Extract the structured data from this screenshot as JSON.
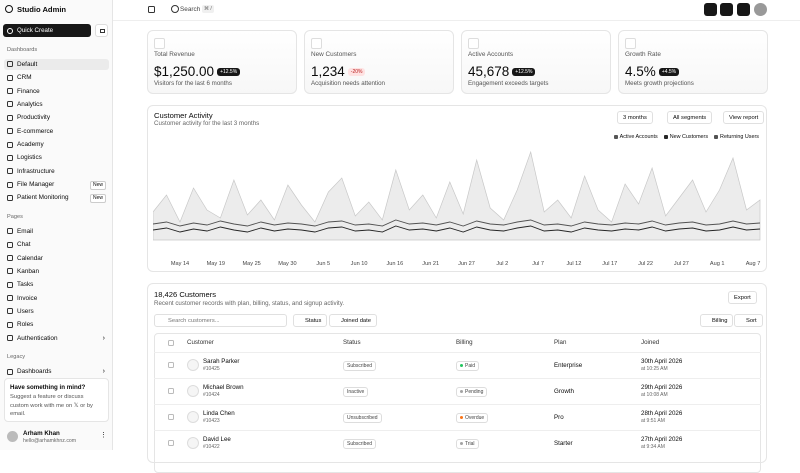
{
  "sidebar": {
    "brand": "Studio Admin",
    "quick_create": "Quick Create",
    "sections": [
      {
        "title": "Dashboards",
        "items": [
          {
            "label": "Default"
          },
          {
            "label": "CRM"
          },
          {
            "label": "Finance"
          },
          {
            "label": "Analytics"
          },
          {
            "label": "Productivity"
          },
          {
            "label": "E-commerce"
          },
          {
            "label": "Academy"
          },
          {
            "label": "Logistics"
          },
          {
            "label": "Infrastructure"
          },
          {
            "label": "File Manager",
            "badge": "New"
          },
          {
            "label": "Patient Monitoring",
            "badge": "New"
          }
        ]
      },
      {
        "title": "Pages",
        "items": [
          {
            "label": "Email"
          },
          {
            "label": "Chat"
          },
          {
            "label": "Calendar"
          },
          {
            "label": "Kanban"
          },
          {
            "label": "Tasks"
          },
          {
            "label": "Invoice"
          },
          {
            "label": "Users"
          },
          {
            "label": "Roles"
          },
          {
            "label": "Authentication"
          }
        ]
      },
      {
        "title": "Legacy",
        "items": [
          {
            "label": "Dashboards"
          }
        ]
      }
    ],
    "promo": {
      "title": "Have something in mind?",
      "text": "Suggest a feature or discuss custom work with me on 𝕏 or by email."
    },
    "user": {
      "name": "Arham Khan",
      "email": "hello@arhamkhnz.com"
    }
  },
  "header": {
    "search": "Search",
    "shortcut": "⌘ /"
  },
  "kpis": [
    {
      "label": "Total Revenue",
      "value": "$1,250.00",
      "change": "+12.5%",
      "note": "Visitors for the last 6 months"
    },
    {
      "label": "New Customers",
      "value": "1,234",
      "change": "-20%",
      "note": "Acquisition needs attention"
    },
    {
      "label": "Active Accounts",
      "value": "45,678",
      "change": "+12.5%",
      "note": "Engagement exceeds targets"
    },
    {
      "label": "Growth Rate",
      "value": "4.5%",
      "change": "+4.5%",
      "note": "Meets growth projections"
    }
  ],
  "activity": {
    "title": "Customer Activity",
    "subtitle": "Customer activity for the last 3 months",
    "controls": [
      "3 months",
      "All segments",
      "View report"
    ],
    "chart_data": {
      "type": "area",
      "x_labels": [
        "May 14",
        "May 19",
        "May 25",
        "May 30",
        "Jun 5",
        "Jun 10",
        "Jun 16",
        "Jun 21",
        "Jun 27",
        "Jul 2",
        "Jul 7",
        "Jul 12",
        "Jul 17",
        "Jul 22",
        "Jul 27",
        "Aug 1",
        "Aug 7"
      ],
      "series": [
        {
          "name": "Active Accounts",
          "color": "#d4d4d4",
          "values": [
            28,
            45,
            18,
            52,
            30,
            22,
            60,
            25,
            40,
            20,
            55,
            35,
            18,
            48,
            62,
            24,
            38,
            20,
            70,
            30,
            45,
            22,
            58,
            26,
            80,
            32,
            20,
            50,
            88,
            28,
            40,
            22,
            64,
            30,
            18,
            56,
            36,
            72,
            24,
            42,
            60,
            28,
            50,
            82,
            30,
            40
          ]
        },
        {
          "name": "New Customers",
          "color": "#262626",
          "values": [
            10,
            12,
            8,
            11,
            9,
            13,
            10,
            8,
            12,
            9,
            11,
            10,
            8,
            12,
            13,
            9,
            10,
            8,
            14,
            10,
            11,
            9,
            12,
            8,
            13,
            10,
            9,
            12,
            14,
            9,
            10,
            8,
            12,
            10,
            9,
            11,
            10,
            13,
            9,
            11,
            12,
            9,
            10,
            13,
            10,
            11
          ]
        },
        {
          "name": "Returning Users",
          "color": "#525252",
          "values": [
            16,
            18,
            14,
            17,
            15,
            19,
            16,
            14,
            18,
            15,
            17,
            16,
            14,
            18,
            19,
            15,
            16,
            14,
            20,
            16,
            17,
            15,
            18,
            14,
            19,
            16,
            15,
            18,
            20,
            15,
            16,
            14,
            18,
            16,
            15,
            17,
            16,
            19,
            15,
            17,
            18,
            15,
            16,
            19,
            16,
            17
          ]
        }
      ]
    }
  },
  "customers": {
    "title": "18,426 Customers",
    "subtitle": "Recent customer records with plan, billing, status, and signup activity.",
    "export": "Export",
    "search_placeholder": "Search customers...",
    "filters": [
      "Status",
      "Joined date"
    ],
    "actions": [
      "Billing",
      "Sort"
    ],
    "columns": [
      "Customer",
      "Status",
      "Billing",
      "Plan",
      "Joined"
    ],
    "rows": [
      {
        "name": "Sarah Parker",
        "id": "#10425",
        "status": "Subscribed",
        "billing": "Paid",
        "billing_color": "#22c55e",
        "plan": "Enterprise",
        "joined": "30th April 2026",
        "time": "at 10:25 AM"
      },
      {
        "name": "Michael Brown",
        "id": "#10424",
        "status": "Inactive",
        "billing": "Pending",
        "billing_color": "#a3a3a3",
        "plan": "Growth",
        "joined": "29th April 2026",
        "time": "at 10:08 AM"
      },
      {
        "name": "Linda Chen",
        "id": "#10423",
        "status": "Unsubscribed",
        "billing": "Overdue",
        "billing_color": "#f97316",
        "plan": "Pro",
        "joined": "28th April 2026",
        "time": "at 9:51 AM"
      },
      {
        "name": "David Lee",
        "id": "#10422",
        "status": "Subscribed",
        "billing": "Trial",
        "billing_color": "#a3a3a3",
        "plan": "Starter",
        "joined": "27th April 2026",
        "time": "at 9:34 AM"
      }
    ]
  }
}
